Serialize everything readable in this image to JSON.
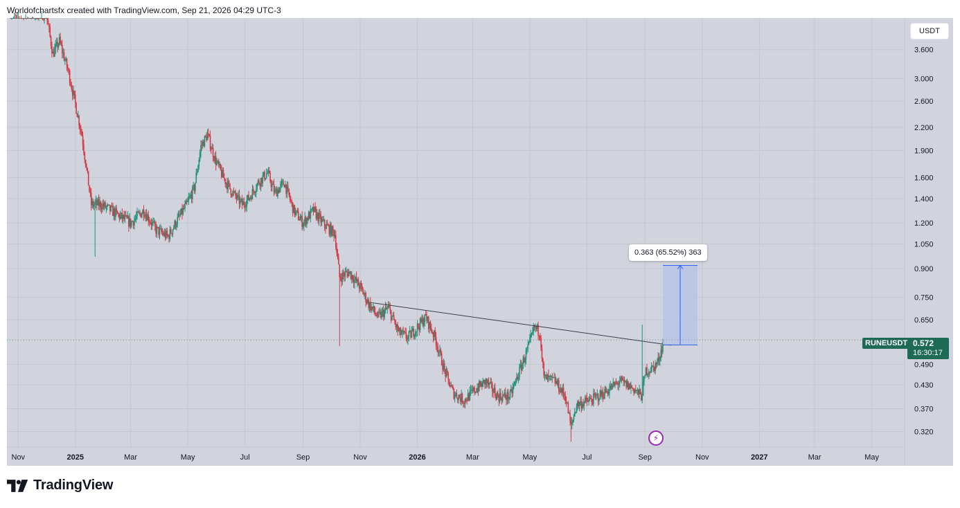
{
  "header": {
    "attribution": "Worldofchartsfx created with TradingView.com, Sep 21, 2026 04:29 UTC-3"
  },
  "branding": {
    "logo_text": "TradingView",
    "logo_icon": "tradingview-logo-icon"
  },
  "currency_label": "USDT",
  "symbol": "RUNEUSDT",
  "last_price": "0.572",
  "countdown": "16:30:17",
  "measure_label": "0.363 (65.52%) 363",
  "colors": {
    "background": "#d1d4dc",
    "up": "#1e9278",
    "down": "#d23a46",
    "trendline": "#3a3e48",
    "measure_fill": "#b9c3e6",
    "measure_line": "#2962ff",
    "price_tag": "#1e6b55"
  },
  "chart_data": {
    "type": "candlestick",
    "scale": "log",
    "ylim": [
      0.29,
      4.4
    ],
    "y_ticks": [
      "3.600",
      "3.000",
      "2.600",
      "2.200",
      "1.900",
      "1.600",
      "1.400",
      "1.200",
      "1.050",
      "0.900",
      "0.750",
      "0.650",
      "0.490",
      "0.430",
      "0.370",
      "0.320"
    ],
    "x_ticks": [
      {
        "label": "Nov",
        "bold": false
      },
      {
        "label": "2025",
        "bold": true
      },
      {
        "label": "Mar",
        "bold": false
      },
      {
        "label": "May",
        "bold": false
      },
      {
        "label": "Jul",
        "bold": false
      },
      {
        "label": "Sep",
        "bold": false
      },
      {
        "label": "Nov",
        "bold": false
      },
      {
        "label": "2026",
        "bold": true
      },
      {
        "label": "Mar",
        "bold": false
      },
      {
        "label": "May",
        "bold": false
      },
      {
        "label": "Jul",
        "bold": false
      },
      {
        "label": "Sep",
        "bold": false
      },
      {
        "label": "Nov",
        "bold": false
      },
      {
        "label": "2027",
        "bold": true
      },
      {
        "label": "Mar",
        "bold": false
      },
      {
        "label": "May",
        "bold": false
      }
    ],
    "x_tick_dates": [
      "2024-11-01",
      "2025-01-01",
      "2025-03-01",
      "2025-05-01",
      "2025-07-01",
      "2025-09-01",
      "2025-11-01",
      "2026-01-01",
      "2026-03-01",
      "2026-05-01",
      "2026-07-01",
      "2026-09-01",
      "2026-11-01",
      "2027-01-01",
      "2027-03-01",
      "2027-05-01"
    ],
    "x_range": [
      "2024-10-20",
      "2027-06-05"
    ],
    "price_path": [
      [
        "2024-10-24",
        4.6
      ],
      [
        "2024-12-01",
        4.5
      ],
      [
        "2024-12-08",
        3.5
      ],
      [
        "2024-12-15",
        3.8
      ],
      [
        "2024-12-25",
        3.1
      ],
      [
        "2025-01-08",
        2.1
      ],
      [
        "2025-01-18",
        1.35
      ],
      [
        "2025-01-28",
        1.35
      ],
      [
        "2025-02-08",
        1.3
      ],
      [
        "2025-02-18",
        1.25
      ],
      [
        "2025-03-01",
        1.2
      ],
      [
        "2025-03-15",
        1.3
      ],
      [
        "2025-03-28",
        1.15
      ],
      [
        "2025-04-10",
        1.1
      ],
      [
        "2025-04-18",
        1.2
      ],
      [
        "2025-04-30",
        1.35
      ],
      [
        "2025-05-08",
        1.5
      ],
      [
        "2025-05-15",
        1.95
      ],
      [
        "2025-05-22",
        2.1
      ],
      [
        "2025-05-30",
        1.8
      ],
      [
        "2025-06-08",
        1.6
      ],
      [
        "2025-06-18",
        1.45
      ],
      [
        "2025-06-28",
        1.35
      ],
      [
        "2025-07-05",
        1.4
      ],
      [
        "2025-07-15",
        1.55
      ],
      [
        "2025-07-25",
        1.65
      ],
      [
        "2025-08-02",
        1.45
      ],
      [
        "2025-08-12",
        1.55
      ],
      [
        "2025-08-22",
        1.3
      ],
      [
        "2025-09-01",
        1.2
      ],
      [
        "2025-09-12",
        1.3
      ],
      [
        "2025-09-22",
        1.2
      ],
      [
        "2025-10-05",
        1.12
      ],
      [
        "2025-10-10",
        0.85
      ],
      [
        "2025-10-20",
        0.88
      ],
      [
        "2025-11-01",
        0.8
      ],
      [
        "2025-11-10",
        0.72
      ],
      [
        "2025-11-20",
        0.66
      ],
      [
        "2025-12-01",
        0.7
      ],
      [
        "2025-12-12",
        0.6
      ],
      [
        "2025-12-22",
        0.58
      ],
      [
        "2026-01-01",
        0.62
      ],
      [
        "2026-01-10",
        0.66
      ],
      [
        "2026-01-20",
        0.58
      ],
      [
        "2026-01-30",
        0.47
      ],
      [
        "2026-02-08",
        0.41
      ],
      [
        "2026-02-20",
        0.39
      ],
      [
        "2026-03-05",
        0.42
      ],
      [
        "2026-03-15",
        0.44
      ],
      [
        "2026-03-28",
        0.4
      ],
      [
        "2026-04-10",
        0.4
      ],
      [
        "2026-04-20",
        0.47
      ],
      [
        "2026-04-30",
        0.55
      ],
      [
        "2026-05-06",
        0.62
      ],
      [
        "2026-05-12",
        0.6
      ],
      [
        "2026-05-16",
        0.45
      ],
      [
        "2026-05-28",
        0.44
      ],
      [
        "2026-06-08",
        0.4
      ],
      [
        "2026-06-14",
        0.33
      ],
      [
        "2026-06-20",
        0.38
      ],
      [
        "2026-07-05",
        0.39
      ],
      [
        "2026-07-20",
        0.41
      ],
      [
        "2026-08-05",
        0.44
      ],
      [
        "2026-08-20",
        0.42
      ],
      [
        "2026-08-28",
        0.4
      ],
      [
        "2026-09-02",
        0.47
      ],
      [
        "2026-09-10",
        0.48
      ],
      [
        "2026-09-15",
        0.5
      ],
      [
        "2026-09-21",
        0.572
      ]
    ],
    "wick_spikes": [
      {
        "date": "2025-10-10",
        "low": 0.55
      },
      {
        "date": "2025-01-22",
        "low": 0.97
      },
      {
        "date": "2026-06-14",
        "low": 0.3
      },
      {
        "date": "2026-08-29",
        "high": 0.63
      }
    ],
    "trendline": [
      [
        "2025-11-12",
        0.725
      ],
      [
        "2026-09-29",
        0.553
      ]
    ],
    "measure": {
      "date_from": "2026-09-20",
      "date_to": "2026-10-27",
      "y_from": 0.554,
      "y_to": 0.917
    },
    "last_close": 0.572
  }
}
